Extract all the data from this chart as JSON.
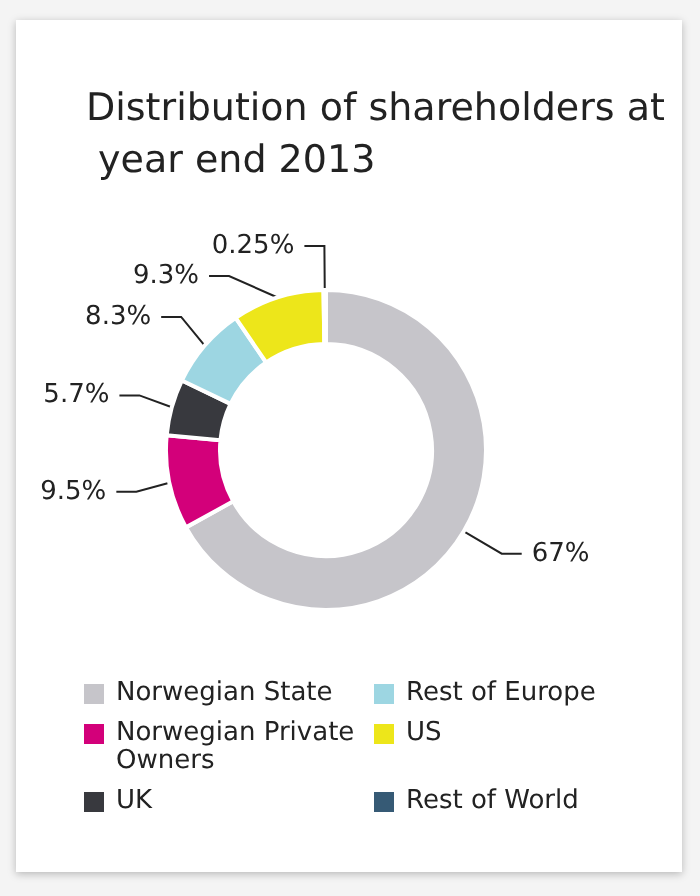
{
  "chart_data": {
    "type": "donut",
    "title": "Distribution of shareholders at year end 2013",
    "categories": [
      "Norwegian State",
      "Norwegian Private Owners",
      "UK",
      "Rest of Europe",
      "US",
      "Rest of World"
    ],
    "values": [
      67,
      9.5,
      5.7,
      8.3,
      9.3,
      0.25
    ],
    "value_labels": [
      "67%",
      "9.5%",
      "5.7%",
      "8.3%",
      "9.3%",
      "0.25%"
    ],
    "colors": [
      "#c6c5ca",
      "#d3007a",
      "#38393e",
      "#9dd6e2",
      "#ede61a",
      "#365a75"
    ],
    "legend": "bottom"
  }
}
